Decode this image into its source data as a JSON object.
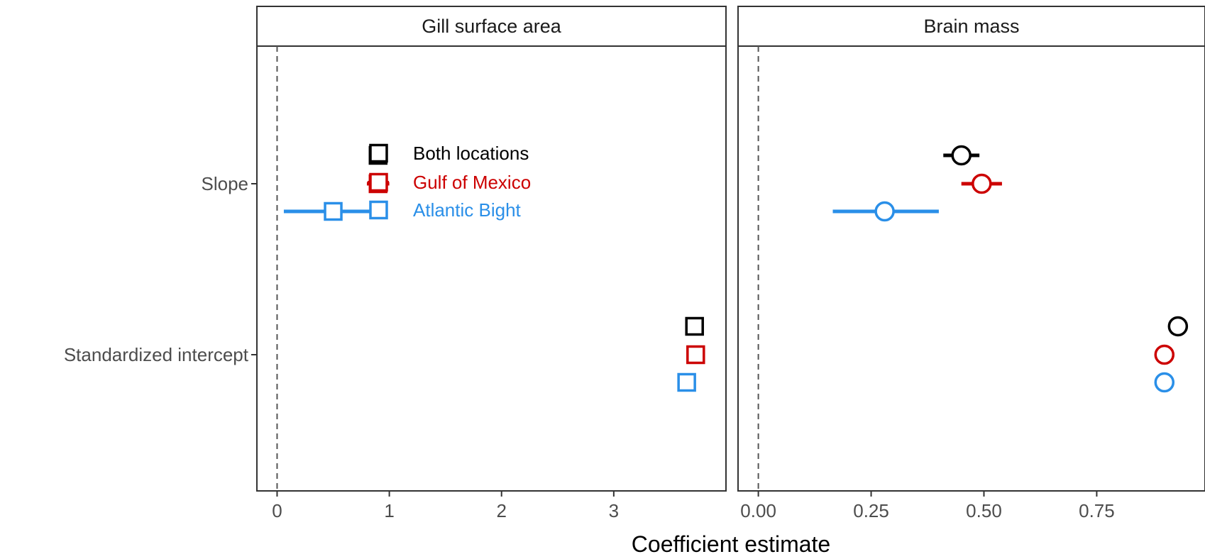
{
  "chart_data": {
    "type": "scatter",
    "xlabel": "Coefficient estimate",
    "y_categories": [
      "Slope",
      "Standardized intercept"
    ],
    "reference_line_x": 0,
    "legend": {
      "placement": "inside-left-panel-top",
      "entries": [
        {
          "name": "Both locations",
          "color": "#000000"
        },
        {
          "name": "Gulf of Mexico",
          "color": "#cc0000"
        },
        {
          "name": "Atlantic Bight",
          "color": "#2a8fe8"
        }
      ]
    },
    "panels": [
      {
        "title": "Gill surface area",
        "marker": "square",
        "xlim": [
          -0.18,
          4.0
        ],
        "xticks": [
          {
            "v": 0,
            "label": "0"
          },
          {
            "v": 1,
            "label": "1"
          },
          {
            "v": 2,
            "label": "2"
          },
          {
            "v": 3,
            "label": "3"
          }
        ],
        "points": [
          {
            "series": 0,
            "category": "Slope",
            "estimate": 0.9,
            "lo": 0.88,
            "hi": 0.92
          },
          {
            "series": 1,
            "category": "Slope",
            "estimate": 0.9,
            "lo": 0.8,
            "hi": 1.0
          },
          {
            "series": 2,
            "category": "Slope",
            "estimate": 0.5,
            "lo": 0.06,
            "hi": 0.94
          },
          {
            "series": 0,
            "category": "Standardized intercept",
            "estimate": 3.72,
            "lo": 3.71,
            "hi": 3.73
          },
          {
            "series": 1,
            "category": "Standardized intercept",
            "estimate": 3.73,
            "lo": 3.72,
            "hi": 3.74
          },
          {
            "series": 2,
            "category": "Standardized intercept",
            "estimate": 3.65,
            "lo": 3.58,
            "hi": 3.72
          }
        ]
      },
      {
        "title": "Brain mass",
        "marker": "circle",
        "xlim": [
          -0.045,
          0.99
        ],
        "xticks": [
          {
            "v": 0,
            "label": "0.00"
          },
          {
            "v": 0.25,
            "label": "0.25"
          },
          {
            "v": 0.5,
            "label": "0.50"
          },
          {
            "v": 0.75,
            "label": "0.75"
          }
        ],
        "points": [
          {
            "series": 0,
            "category": "Slope",
            "estimate": 0.45,
            "lo": 0.41,
            "hi": 0.49
          },
          {
            "series": 1,
            "category": "Slope",
            "estimate": 0.495,
            "lo": 0.45,
            "hi": 0.54
          },
          {
            "series": 2,
            "category": "Slope",
            "estimate": 0.28,
            "lo": 0.165,
            "hi": 0.4
          },
          {
            "series": 0,
            "category": "Standardized intercept",
            "estimate": 0.93,
            "lo": 0.925,
            "hi": 0.935
          },
          {
            "series": 1,
            "category": "Standardized intercept",
            "estimate": 0.9,
            "lo": 0.895,
            "hi": 0.905
          },
          {
            "series": 2,
            "category": "Standardized intercept",
            "estimate": 0.9,
            "lo": 0.88,
            "hi": 0.92
          }
        ]
      }
    ]
  }
}
